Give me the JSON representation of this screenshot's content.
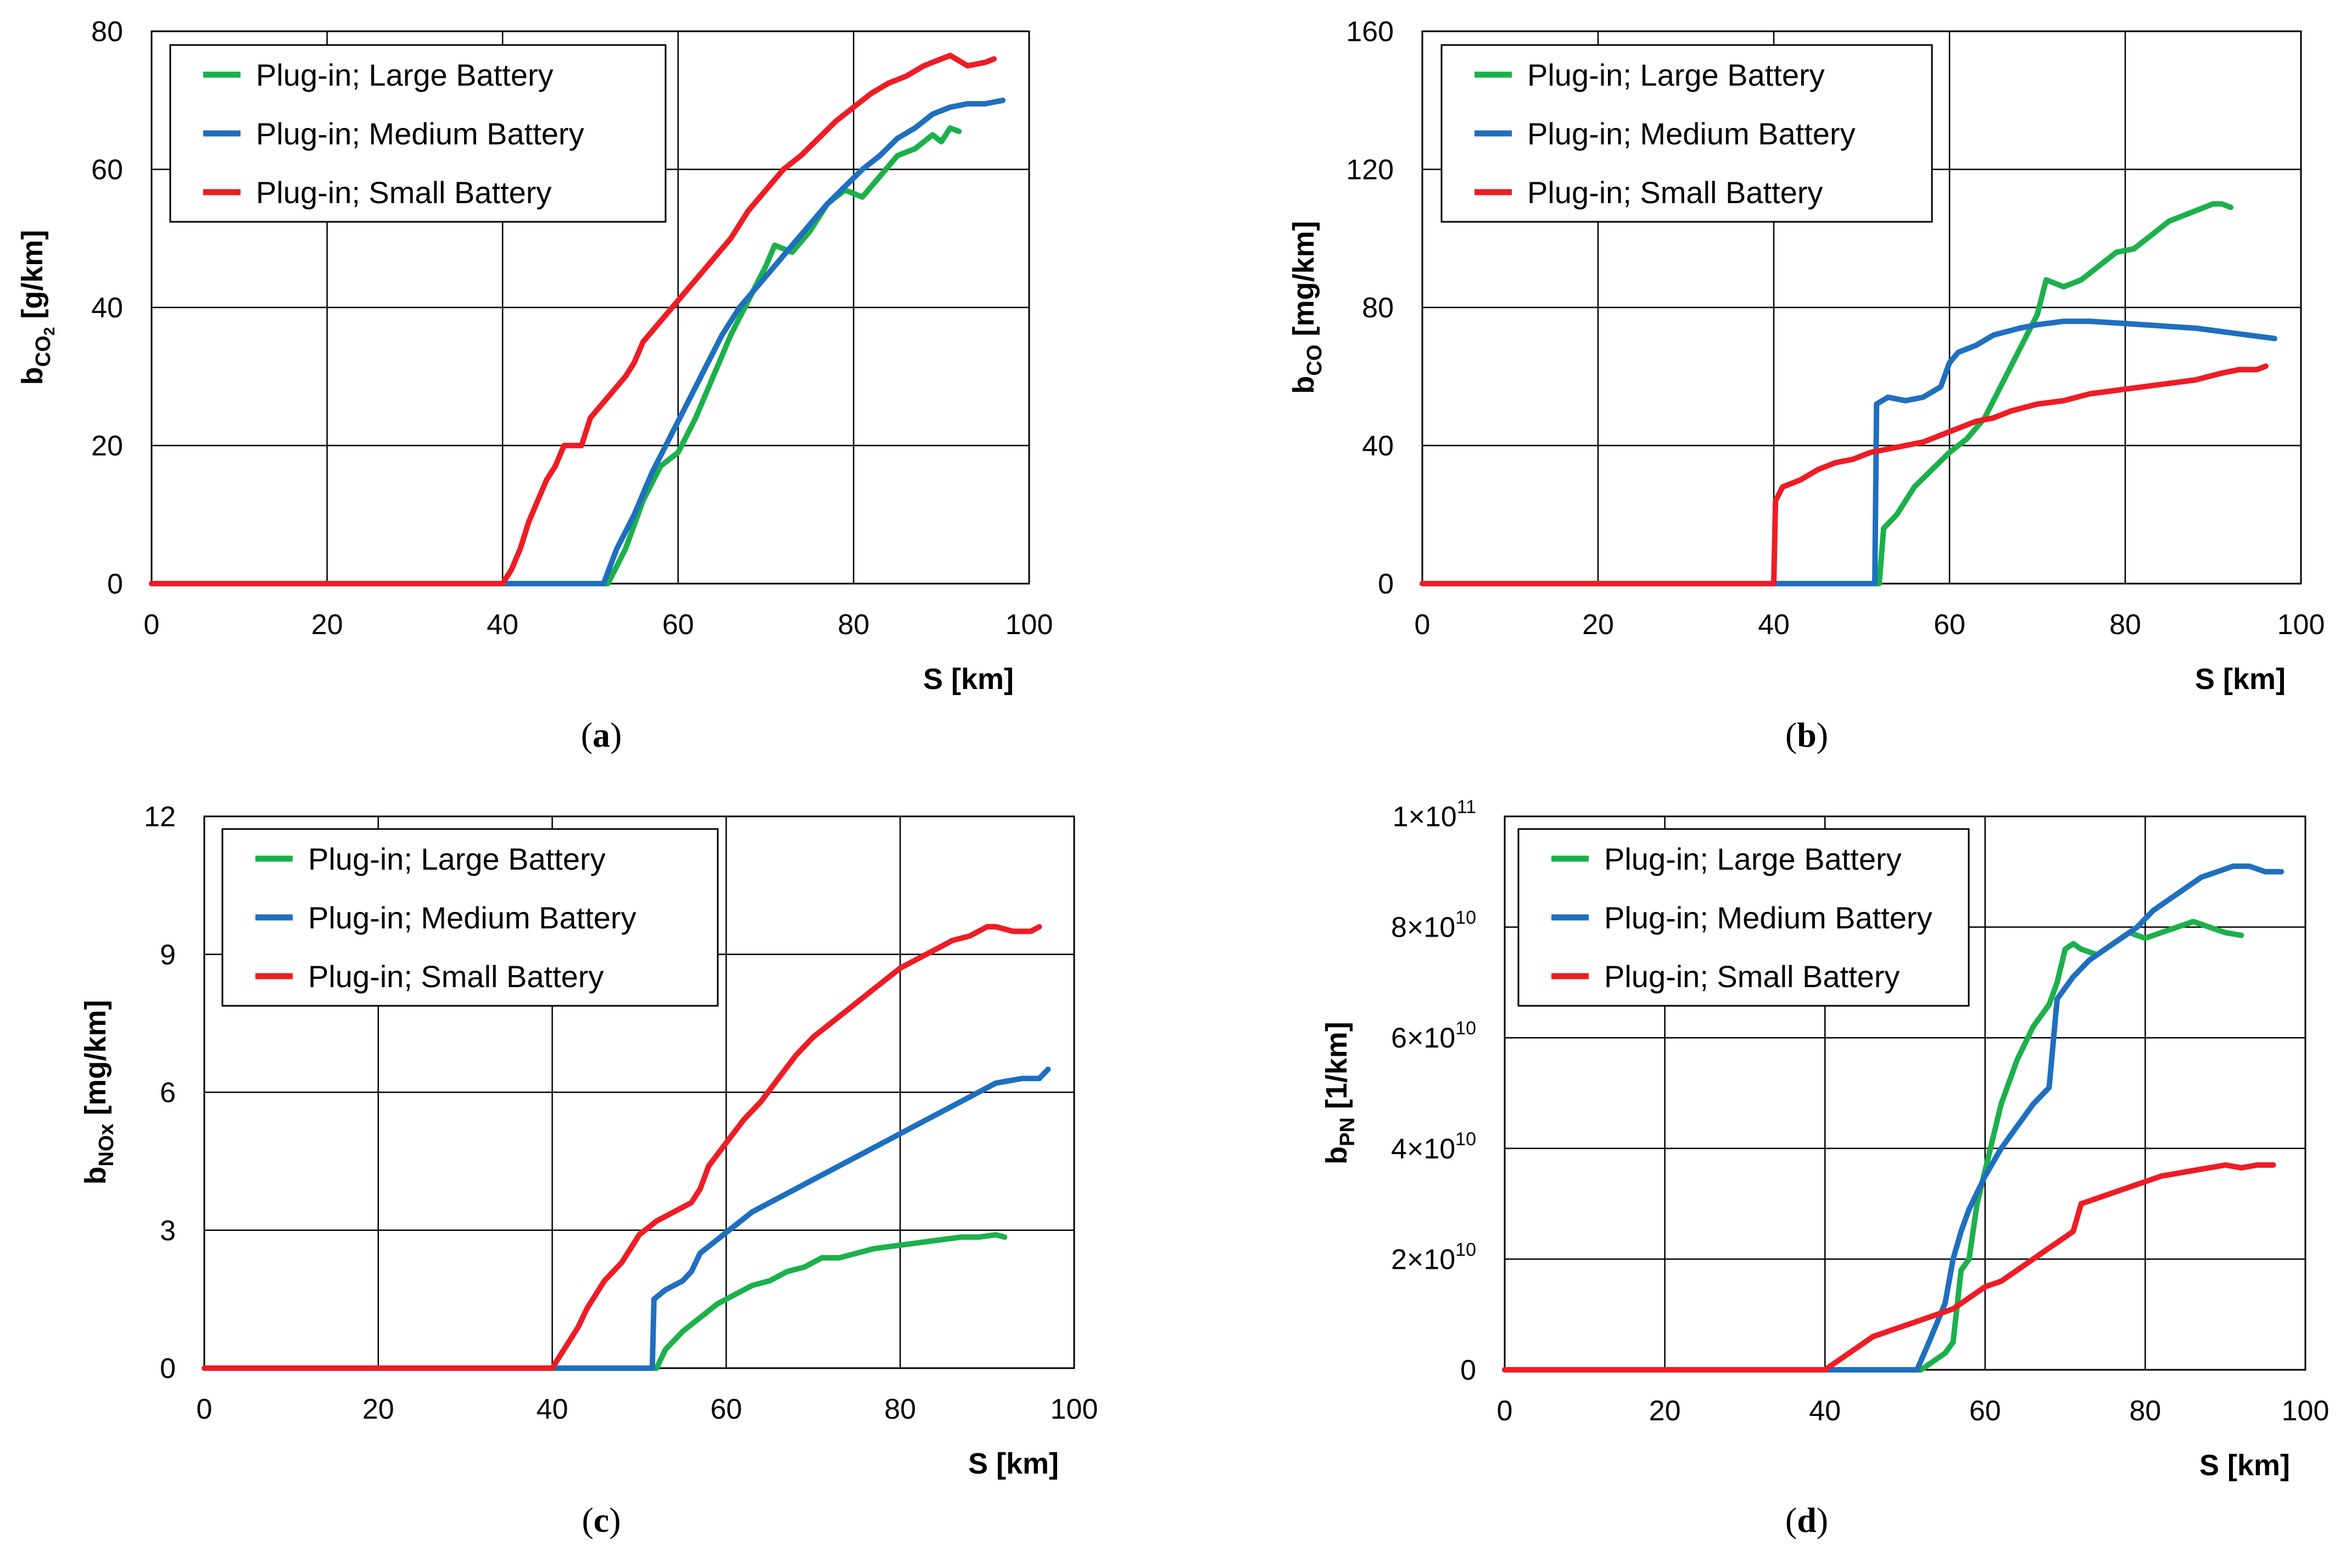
{
  "chart_data": [
    {
      "type": "line",
      "ylabel_main": "b",
      "ylabel_sub": "CO",
      "ylabel_sub2": "2",
      "ylabel_unit": " [g/km]",
      "xlabel": "S [km]",
      "caption_open": "(",
      "caption_letter": "a",
      "caption_close": ")",
      "xlim": [
        0,
        100
      ],
      "ylim": [
        0,
        80
      ],
      "xticks": [
        "0",
        "20",
        "40",
        "60",
        "80",
        "100"
      ],
      "yticks": [
        {
          "base": "0",
          "exp": ""
        },
        {
          "base": "20",
          "exp": ""
        },
        {
          "base": "40",
          "exp": ""
        },
        {
          "base": "60",
          "exp": ""
        },
        {
          "base": "80",
          "exp": ""
        }
      ],
      "grid": true,
      "legend": "top-left",
      "series": [
        {
          "name": "Plug-in; Large Battery",
          "color": "#1cb04b",
          "x": [
            0,
            52,
            54,
            56,
            58,
            60,
            62,
            64,
            66,
            68,
            70,
            71,
            73,
            75,
            77,
            79,
            81,
            83,
            85,
            87,
            89,
            90,
            91,
            92
          ],
          "y": [
            0,
            0,
            5,
            12,
            17,
            19,
            24,
            30,
            36,
            41,
            46,
            49,
            48,
            51,
            55,
            57,
            56,
            59,
            62,
            63,
            65,
            64,
            66,
            65.5
          ]
        },
        {
          "name": "Plug-in; Medium Battery",
          "color": "#1f6fbf",
          "x": [
            0,
            51.5,
            53,
            55,
            57,
            59,
            61,
            63,
            65,
            67,
            69,
            71,
            73,
            75,
            77,
            79,
            81,
            83,
            85,
            87,
            89,
            91,
            93,
            95,
            97
          ],
          "y": [
            0,
            0,
            5,
            10,
            16,
            21,
            26,
            31,
            36,
            40,
            43,
            46,
            49,
            52,
            55,
            57.5,
            60,
            62,
            64.5,
            66,
            68,
            69,
            69.5,
            69.5,
            70
          ]
        },
        {
          "name": "Plug-in; Small Battery",
          "color": "#ee1c25",
          "x": [
            0,
            40,
            41,
            42,
            43,
            44,
            45,
            46,
            47,
            48,
            49,
            50,
            52,
            54,
            55,
            56,
            58,
            60,
            62,
            64,
            66,
            68,
            70,
            72,
            74,
            76,
            78,
            80,
            82,
            84,
            86,
            88,
            90,
            91,
            93,
            95,
            96
          ],
          "y": [
            0,
            0,
            2,
            5,
            9,
            12,
            15,
            17,
            20,
            20,
            20,
            24,
            27,
            30,
            32,
            35,
            38,
            41,
            44,
            47,
            50,
            54,
            57,
            60,
            62,
            64.5,
            67,
            69,
            71,
            72.5,
            73.5,
            75,
            76,
            76.5,
            75,
            75.5,
            76
          ]
        }
      ]
    },
    {
      "type": "line",
      "ylabel_main": "b",
      "ylabel_sub": "CO",
      "ylabel_sub2": "",
      "ylabel_unit": " [mg/km]",
      "xlabel": "S [km]",
      "caption_open": "(",
      "caption_letter": "b",
      "caption_close": ")",
      "xlim": [
        0,
        100
      ],
      "ylim": [
        0,
        160
      ],
      "xticks": [
        "0",
        "20",
        "40",
        "60",
        "80",
        "100"
      ],
      "yticks": [
        {
          "base": "0",
          "exp": ""
        },
        {
          "base": "40",
          "exp": ""
        },
        {
          "base": "80",
          "exp": ""
        },
        {
          "base": "120",
          "exp": ""
        },
        {
          "base": "160",
          "exp": ""
        }
      ],
      "grid": true,
      "legend": "top-left",
      "series": [
        {
          "name": "Plug-in; Large Battery",
          "color": "#1cb04b",
          "x": [
            0,
            52,
            52.5,
            54,
            56,
            58,
            60,
            62,
            64,
            66,
            68,
            70,
            71,
            73,
            75,
            77,
            79,
            81,
            83,
            85,
            87,
            89,
            90,
            91,
            92
          ],
          "y": [
            0,
            0,
            16,
            20,
            28,
            33,
            38,
            42,
            48,
            58,
            68,
            78,
            88,
            86,
            88,
            92,
            96,
            97,
            101,
            105,
            107,
            109,
            110,
            110,
            109
          ]
        },
        {
          "name": "Plug-in; Medium Battery",
          "color": "#1f6fbf",
          "x": [
            0,
            51.5,
            51.7,
            53,
            55,
            57,
            59,
            60,
            61,
            63,
            65,
            68,
            70,
            73,
            76,
            79,
            82,
            85,
            88,
            91,
            94,
            97
          ],
          "y": [
            0,
            0,
            52,
            54,
            53,
            54,
            57,
            64,
            67,
            69,
            72,
            74,
            75,
            76,
            76,
            75.5,
            75,
            74.5,
            74,
            73,
            72,
            71
          ]
        },
        {
          "name": "Plug-in; Small Battery",
          "color": "#ee1c25",
          "x": [
            0,
            40,
            40.2,
            41,
            43,
            45,
            47,
            49,
            51,
            53,
            55,
            57,
            59,
            61,
            63,
            65,
            67,
            70,
            73,
            76,
            79,
            82,
            85,
            88,
            91,
            93,
            95,
            96
          ],
          "y": [
            0,
            0,
            24,
            28,
            30,
            33,
            35,
            36,
            38,
            39,
            40,
            41,
            43,
            45,
            47,
            48,
            50,
            52,
            53,
            55,
            56,
            57,
            58,
            59,
            61,
            62,
            62,
            63
          ]
        }
      ]
    },
    {
      "type": "line",
      "ylabel_main": "b",
      "ylabel_sub": "NOx",
      "ylabel_sub2": "",
      "ylabel_unit": " [mg/km]",
      "xlabel": "S [km]",
      "caption_open": "(",
      "caption_letter": "c",
      "caption_close": ")",
      "xlim": [
        0,
        100
      ],
      "ylim": [
        0,
        12
      ],
      "xticks": [
        "0",
        "20",
        "40",
        "60",
        "80",
        "100"
      ],
      "yticks": [
        {
          "base": "0",
          "exp": ""
        },
        {
          "base": "3",
          "exp": ""
        },
        {
          "base": "6",
          "exp": ""
        },
        {
          "base": "9",
          "exp": ""
        },
        {
          "base": "12",
          "exp": ""
        }
      ],
      "grid": true,
      "legend": "top-left",
      "series": [
        {
          "name": "Plug-in; Large Battery",
          "color": "#1cb04b",
          "x": [
            0,
            52,
            53,
            55,
            57,
            59,
            61,
            63,
            65,
            67,
            69,
            71,
            73,
            75,
            77,
            79,
            81,
            83,
            85,
            87,
            89,
            91,
            92
          ],
          "y": [
            0,
            0,
            0.4,
            0.8,
            1.1,
            1.4,
            1.6,
            1.8,
            1.9,
            2.1,
            2.2,
            2.4,
            2.4,
            2.5,
            2.6,
            2.65,
            2.7,
            2.75,
            2.8,
            2.85,
            2.85,
            2.9,
            2.85
          ]
        },
        {
          "name": "Plug-in; Medium Battery",
          "color": "#1f6fbf",
          "x": [
            0,
            51.5,
            51.7,
            53,
            55,
            56,
            57,
            59,
            61,
            63,
            65,
            67,
            70,
            73,
            76,
            79,
            82,
            85,
            88,
            91,
            94,
            96,
            97
          ],
          "y": [
            0,
            0,
            1.5,
            1.7,
            1.9,
            2.1,
            2.5,
            2.8,
            3.1,
            3.4,
            3.6,
            3.8,
            4.1,
            4.4,
            4.7,
            5.0,
            5.3,
            5.6,
            5.9,
            6.2,
            6.3,
            6.3,
            6.5
          ]
        },
        {
          "name": "Plug-in; Small Battery",
          "color": "#ee1c25",
          "x": [
            0,
            40,
            41,
            42,
            43,
            44,
            45,
            46,
            47,
            48,
            49,
            50,
            52,
            54,
            56,
            57,
            58,
            60,
            62,
            64,
            66,
            68,
            70,
            72,
            74,
            76,
            78,
            80,
            82,
            84,
            86,
            88,
            90,
            91,
            93,
            95,
            96
          ],
          "y": [
            0,
            0,
            0.3,
            0.6,
            0.9,
            1.3,
            1.6,
            1.9,
            2.1,
            2.3,
            2.6,
            2.9,
            3.2,
            3.4,
            3.6,
            3.9,
            4.4,
            4.9,
            5.4,
            5.8,
            6.3,
            6.8,
            7.2,
            7.5,
            7.8,
            8.1,
            8.4,
            8.7,
            8.9,
            9.1,
            9.3,
            9.4,
            9.6,
            9.6,
            9.5,
            9.5,
            9.6
          ]
        }
      ]
    },
    {
      "type": "line",
      "ylabel_main": "b",
      "ylabel_sub": "PN",
      "ylabel_sub2": "",
      "ylabel_unit": " [1/km]",
      "xlabel": "S [km]",
      "caption_open": "(",
      "caption_letter": "d",
      "caption_close": ")",
      "xlim": [
        0,
        100
      ],
      "ylim": [
        0,
        100000000000
      ],
      "xticks": [
        "0",
        "20",
        "40",
        "60",
        "80",
        "100"
      ],
      "yticks": [
        {
          "base": "0",
          "exp": ""
        },
        {
          "base": "2×10",
          "exp": "10"
        },
        {
          "base": "4×10",
          "exp": "10"
        },
        {
          "base": "6×10",
          "exp": "10"
        },
        {
          "base": "8×10",
          "exp": "10"
        },
        {
          "base": "1×10",
          "exp": "11"
        }
      ],
      "grid": true,
      "legend": "top-left",
      "series": [
        {
          "name": "Plug-in; Large Battery",
          "color": "#1cb04b",
          "x": [
            0,
            52,
            54,
            55,
            56,
            57,
            58,
            59,
            60,
            62,
            64,
            66,
            68,
            69,
            70,
            71,
            72,
            74,
            76,
            78,
            80,
            82,
            84,
            86,
            88,
            90,
            92
          ],
          "y": [
            0,
            0,
            2000000000,
            3000000000,
            5000000000,
            18000000000,
            20000000000,
            30000000000,
            36000000000,
            48000000000,
            56000000000,
            62000000000,
            66000000000,
            70000000000,
            76000000000,
            77000000000,
            76000000000,
            75000000000,
            77000000000,
            79000000000,
            78000000000,
            79000000000,
            80000000000,
            81000000000,
            80000000000,
            79000000000,
            78500000000
          ]
        },
        {
          "name": "Plug-in; Medium Battery",
          "color": "#1f6fbf",
          "x": [
            0,
            51.5,
            53,
            55,
            56,
            57,
            58,
            60,
            62,
            64,
            66,
            68,
            69,
            71,
            73,
            75,
            77,
            79,
            81,
            83,
            85,
            87,
            89,
            91,
            93,
            95,
            97
          ],
          "y": [
            0,
            0,
            5000000000,
            12000000000,
            20000000000,
            25000000000,
            29000000000,
            35000000000,
            40000000000,
            44000000000,
            48000000000,
            51000000000,
            67000000000,
            71000000000,
            74000000000,
            76000000000,
            78000000000,
            80000000000,
            83000000000,
            85000000000,
            87000000000,
            89000000000,
            90000000000,
            91000000000,
            91000000000,
            90000000000,
            90000000000
          ]
        },
        {
          "name": "Plug-in; Small Battery",
          "color": "#ee1c25",
          "x": [
            0,
            40,
            42,
            44,
            46,
            48,
            50,
            52,
            54,
            56,
            58,
            60,
            62,
            64,
            66,
            68,
            70,
            71,
            72,
            74,
            76,
            78,
            80,
            82,
            84,
            86,
            88,
            90,
            92,
            94,
            96
          ],
          "y": [
            0,
            0,
            2000000000,
            4000000000,
            6000000000,
            7000000000,
            8000000000,
            9000000000,
            10000000000,
            11000000000,
            13000000000,
            15000000000,
            16000000000,
            18000000000,
            20000000000,
            22000000000,
            24000000000,
            25000000000,
            30000000000,
            31000000000,
            32000000000,
            33000000000,
            34000000000,
            35000000000,
            35500000000,
            36000000000,
            36500000000,
            37000000000,
            36500000000,
            37000000000,
            37000000000
          ]
        }
      ]
    }
  ]
}
